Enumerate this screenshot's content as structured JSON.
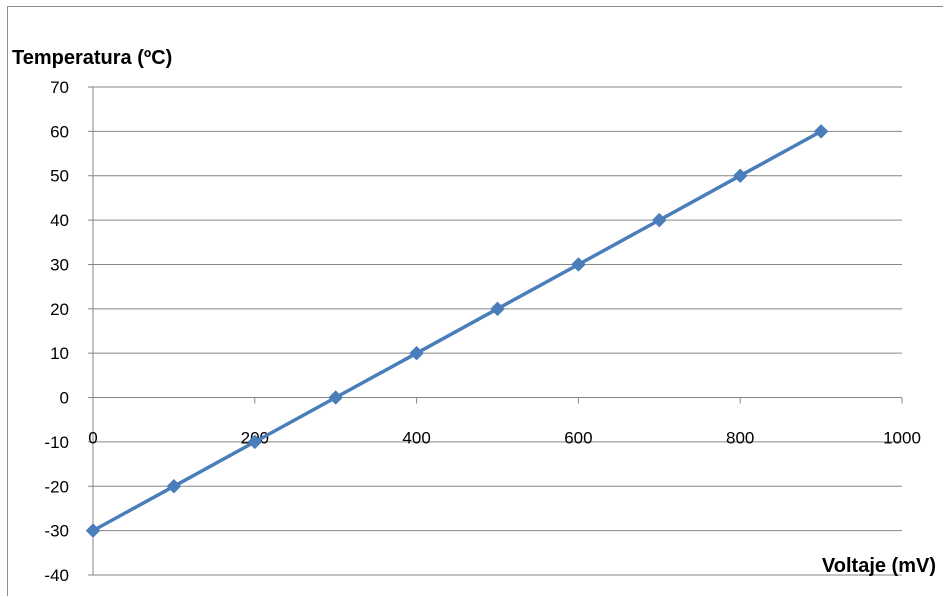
{
  "chart_data": {
    "type": "line",
    "xlabel": "Voltaje (mV)",
    "ylabel": "Temperatura (ºC)",
    "xlim": [
      0,
      1000
    ],
    "ylim": [
      -40,
      70
    ],
    "x_ticks": [
      0,
      200,
      400,
      600,
      800,
      1000
    ],
    "y_ticks": [
      70,
      60,
      50,
      40,
      30,
      20,
      10,
      0,
      -10,
      -20,
      -30,
      -40
    ],
    "grid": "horizontal",
    "legend": "none",
    "series": [
      {
        "x": [
          0,
          100,
          200,
          300,
          400,
          500,
          600,
          700,
          800,
          900
        ],
        "y": [
          -30,
          -20,
          -10,
          0,
          10,
          20,
          30,
          40,
          50,
          60
        ],
        "color": "#4a7ebb",
        "marker": "diamond"
      }
    ]
  }
}
